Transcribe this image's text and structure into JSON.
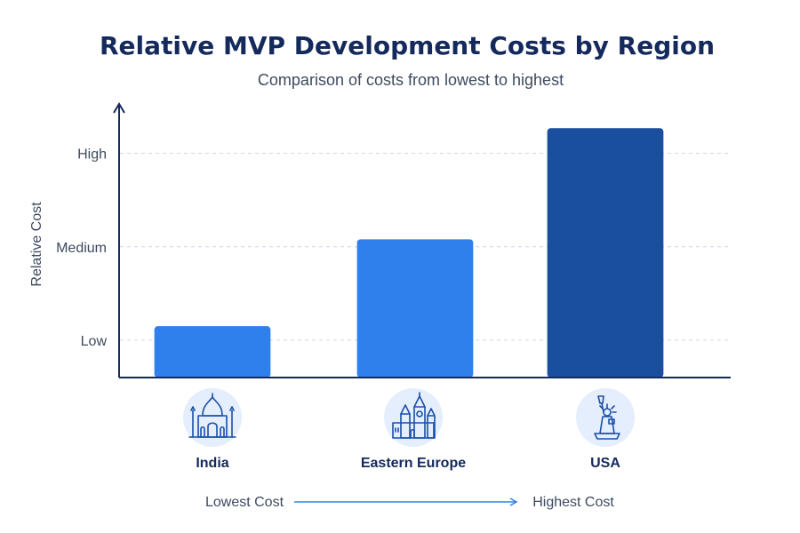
{
  "chart_data": {
    "type": "bar",
    "title": "Relative MVP Development Costs by Region",
    "subtitle": "Comparison of costs from lowest to highest",
    "ylabel": "Relative Cost",
    "xlabel": "",
    "categories": [
      "India",
      "Eastern Europe",
      "USA"
    ],
    "values": [
      1.15,
      2.08,
      3.27
    ],
    "ylim": [
      0.6,
      3.5
    ],
    "y_ticks": [
      {
        "value": 1,
        "label": "Low"
      },
      {
        "value": 2,
        "label": "Medium"
      },
      {
        "value": 3,
        "label": "High"
      }
    ],
    "bar_colors": [
      "#2f80ed",
      "#2f80ed",
      "#1a4fa0"
    ],
    "grid": true,
    "icons": [
      "taj-mahal-icon",
      "castle-towers-icon",
      "statue-of-liberty-icon"
    ],
    "footer": {
      "left_label": "Lowest Cost",
      "right_label": "Highest Cost"
    }
  }
}
